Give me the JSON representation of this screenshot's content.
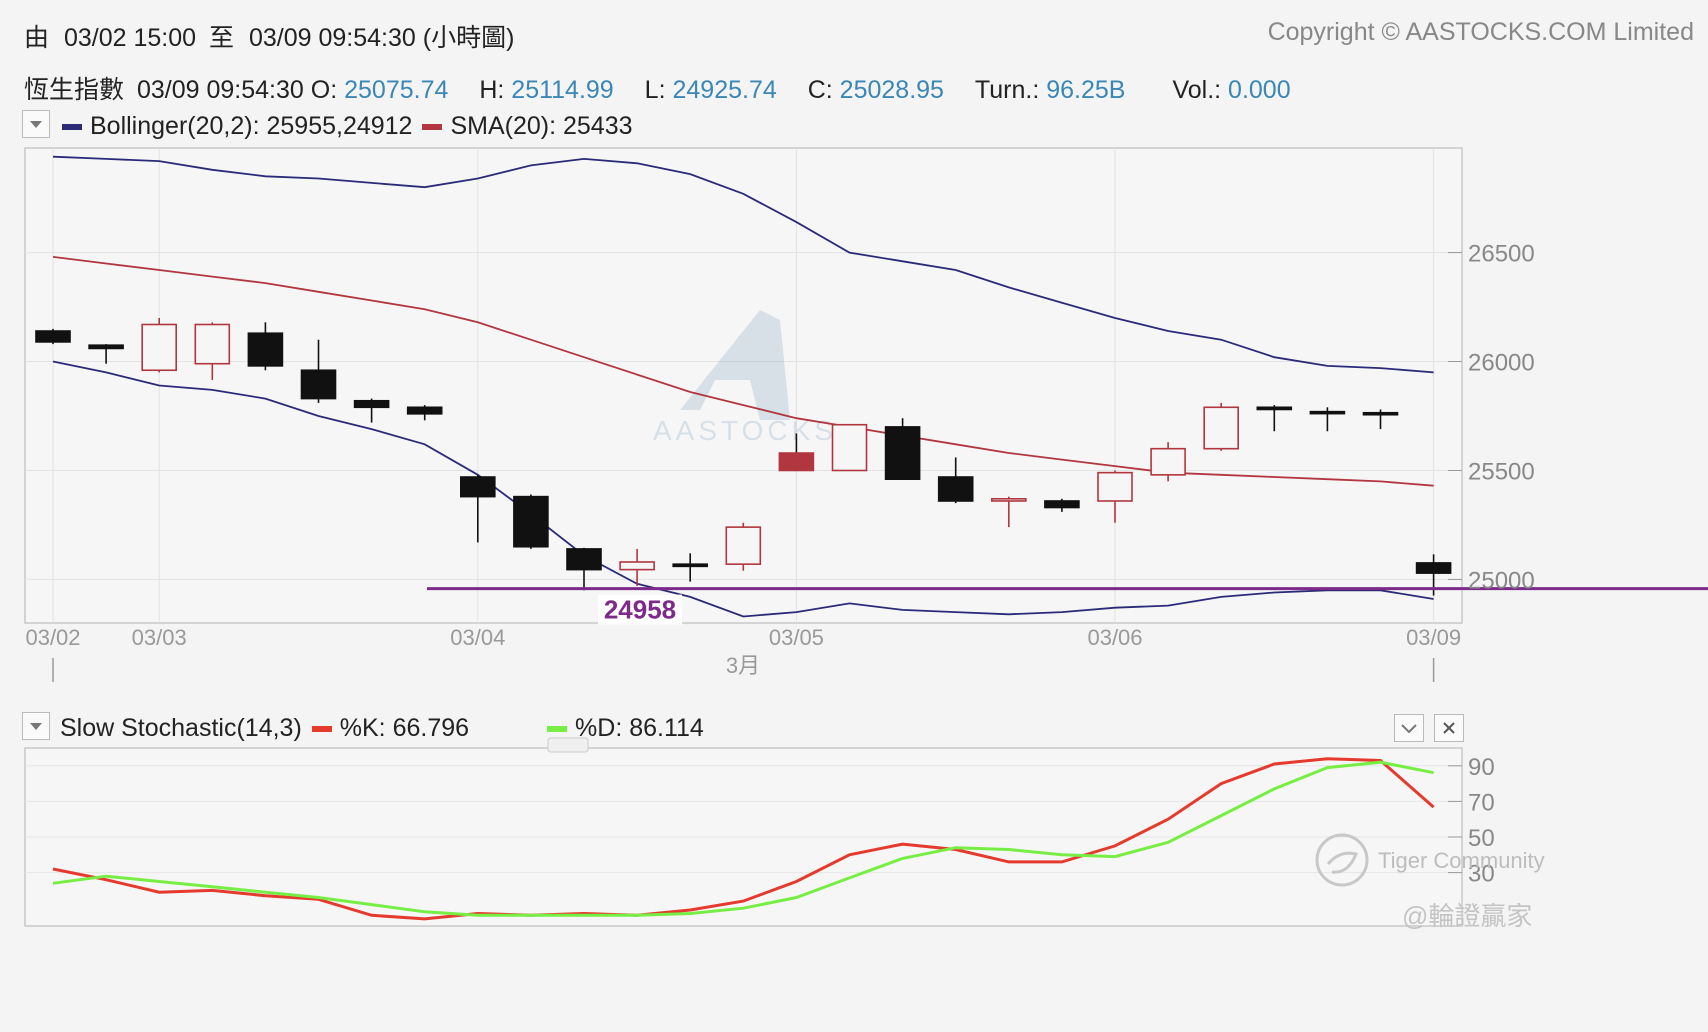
{
  "header": {
    "range_from_label": "由",
    "range_from": "03/02 15:00",
    "range_to_label": "至",
    "range_to": "03/09 09:54:30",
    "range_suffix": "(小時圖)",
    "copyright": "Copyright © AASTOCKS.COM Limited"
  },
  "quote": {
    "name": "恆生指數",
    "time": "03/09 09:54:30",
    "open_label": "O:",
    "open": "25075.74",
    "high_label": "H:",
    "high": "25114.99",
    "low_label": "L:",
    "low": "24925.74",
    "close_label": "C:",
    "close": "25028.95",
    "turn_label": "Turn.:",
    "turn": "96.25B",
    "vol_label": "Vol.:",
    "vol": "0.000"
  },
  "main_legend": {
    "bollinger": "Bollinger(20,2): 25955,24912",
    "sma": "SMA(20): 25433",
    "bollinger_color": "#2b2a78",
    "sma_color": "#b2363f"
  },
  "stoch_legend": {
    "title": "Slow Stochastic(14,3)",
    "k": "%K: 66.796",
    "d": "%D: 86.114",
    "k_color": "#e53a2e",
    "d_color": "#77ee44"
  },
  "watermarks": {
    "chart": "AASTOCKS",
    "tiger": "Tiger Community",
    "author": "@輪證贏家"
  },
  "icons": {
    "dropdown": "chevron-down-icon",
    "collapse": "chevron-down-icon",
    "close": "close-icon"
  },
  "chart_data": [
    {
      "type": "candlestick",
      "title": "",
      "x_labels": [
        "03/02",
        "03/03",
        "03/04",
        "03/05",
        "03/06",
        "03/09"
      ],
      "x_label_index": [
        0,
        2,
        8,
        14,
        20,
        26
      ],
      "month_label": "3月",
      "ylim": [
        24800,
        26980
      ],
      "y_ticks": [
        25000,
        25500,
        26000,
        26500
      ],
      "support_line": {
        "value": 24958,
        "label": "24958",
        "color": "#7d2a8a"
      },
      "candles": [
        {
          "o": 26140,
          "h": 26150,
          "l": 26080,
          "c": 26090
        },
        {
          "o": 26075,
          "h": 26080,
          "l": 25990,
          "c": 26060
        },
        {
          "o": 25960,
          "h": 26200,
          "l": 25950,
          "c": 26170
        },
        {
          "o": 25990,
          "h": 26180,
          "l": 25915,
          "c": 26170
        },
        {
          "o": 26130,
          "h": 26180,
          "l": 25960,
          "c": 25980
        },
        {
          "o": 25960,
          "h": 26100,
          "l": 25810,
          "c": 25830
        },
        {
          "o": 25820,
          "h": 25830,
          "l": 25720,
          "c": 25790
        },
        {
          "o": 25790,
          "h": 25800,
          "l": 25730,
          "c": 25760
        },
        {
          "o": 25470,
          "h": 25480,
          "l": 25170,
          "c": 25380
        },
        {
          "o": 25380,
          "h": 25390,
          "l": 25140,
          "c": 25150
        },
        {
          "o": 25140,
          "h": 25145,
          "l": 24950,
          "c": 25045
        },
        {
          "o": 25045,
          "h": 25140,
          "l": 24970,
          "c": 25080
        },
        {
          "o": 25070,
          "h": 25120,
          "l": 24990,
          "c": 25060
        },
        {
          "o": 25070,
          "h": 25260,
          "l": 25040,
          "c": 25240
        },
        {
          "o": 25580,
          "h": 25670,
          "l": 25500,
          "c": 25500
        },
        {
          "o": 25500,
          "h": 25710,
          "l": 25500,
          "c": 25710
        },
        {
          "o": 25700,
          "h": 25740,
          "l": 25460,
          "c": 25460
        },
        {
          "o": 25470,
          "h": 25560,
          "l": 25350,
          "c": 25360
        },
        {
          "o": 25360,
          "h": 25380,
          "l": 25240,
          "c": 25370
        },
        {
          "o": 25360,
          "h": 25370,
          "l": 25310,
          "c": 25330
        },
        {
          "o": 25360,
          "h": 25500,
          "l": 25260,
          "c": 25490
        },
        {
          "o": 25480,
          "h": 25630,
          "l": 25450,
          "c": 25600
        },
        {
          "o": 25600,
          "h": 25810,
          "l": 25590,
          "c": 25790
        },
        {
          "o": 25790,
          "h": 25800,
          "l": 25680,
          "c": 25780
        },
        {
          "o": 25770,
          "h": 25790,
          "l": 25680,
          "c": 25765
        },
        {
          "o": 25765,
          "h": 25780,
          "l": 25690,
          "c": 25760
        },
        {
          "o": 25075.74,
          "h": 25114.99,
          "l": 24925.74,
          "c": 25028.95
        }
      ],
      "bollinger_upper": [
        26940,
        26930,
        26920,
        26880,
        26850,
        26840,
        26820,
        26800,
        26840,
        26900,
        26930,
        26910,
        26860,
        26770,
        26640,
        26500,
        26460,
        26420,
        26340,
        26270,
        26200,
        26140,
        26100,
        26020,
        25980,
        25970,
        25950
      ],
      "bollinger_lower": [
        26000,
        25950,
        25890,
        25870,
        25830,
        25750,
        25690,
        25620,
        25480,
        25300,
        25110,
        24980,
        24920,
        24830,
        24850,
        24890,
        24860,
        24850,
        24840,
        24850,
        24870,
        24880,
        24920,
        24940,
        24950,
        24950,
        24910
      ],
      "sma": [
        26480,
        26450,
        26420,
        26390,
        26360,
        26320,
        26280,
        26240,
        26180,
        26100,
        26020,
        25940,
        25860,
        25800,
        25740,
        25700,
        25660,
        25620,
        25580,
        25550,
        25520,
        25490,
        25480,
        25470,
        25460,
        25450,
        25430
      ]
    },
    {
      "type": "line",
      "title": "Slow Stochastic(14,3)",
      "ylim": [
        0,
        100
      ],
      "y_ticks": [
        30,
        50,
        70,
        90
      ],
      "series": [
        {
          "name": "%K",
          "color": "#e53a2e",
          "values": [
            32,
            26,
            19,
            20,
            17,
            15,
            6,
            4,
            7,
            6,
            7,
            6,
            9,
            14,
            25,
            40,
            46,
            43,
            36,
            36,
            45,
            60,
            80,
            91,
            94,
            93,
            66.796
          ]
        },
        {
          "name": "%D",
          "color": "#77ee44",
          "values": [
            24,
            28,
            25,
            22,
            19,
            16,
            12,
            8,
            6,
            6,
            6,
            6,
            7,
            10,
            16,
            27,
            38,
            44,
            43,
            40,
            39,
            47,
            62,
            77,
            89,
            92,
            86.114
          ]
        }
      ]
    }
  ]
}
